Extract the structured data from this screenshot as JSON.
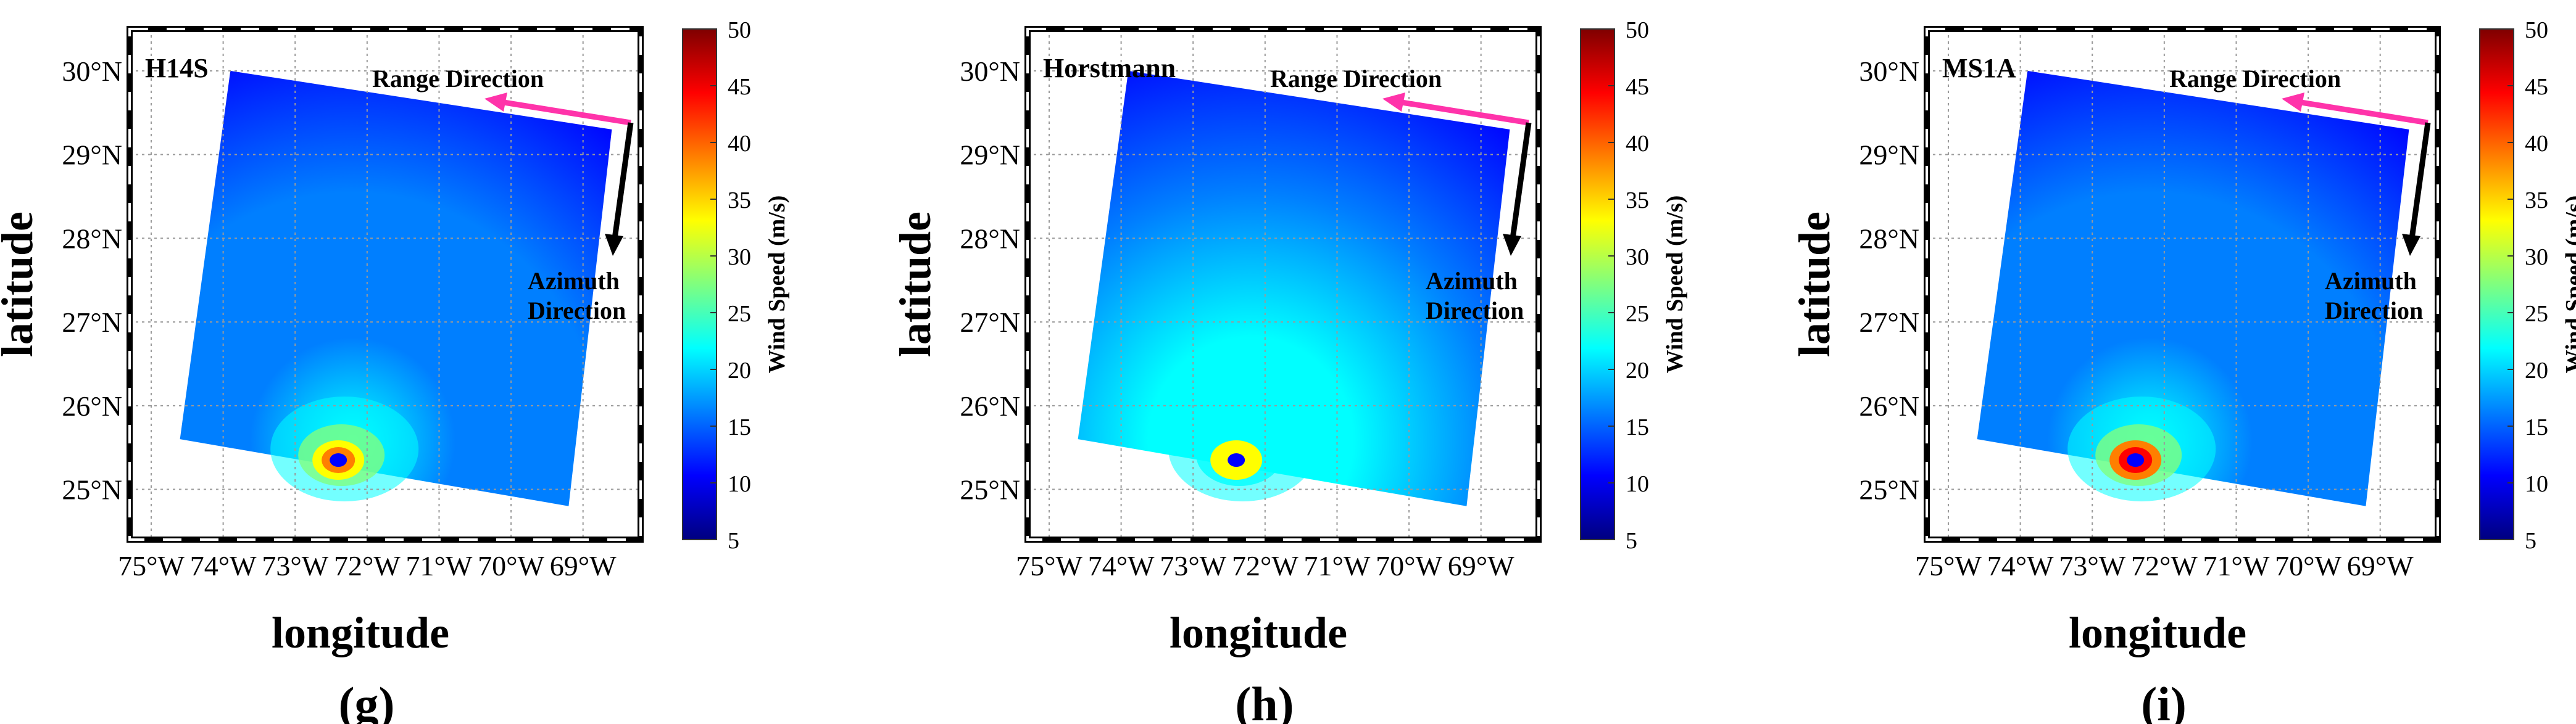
{
  "panels": [
    {
      "id": "g",
      "title": "H14S",
      "label": "(g)",
      "range_label": "Range Direction",
      "azimuth_label_line1": "Azimuth",
      "azimuth_label_line2": "Direction"
    },
    {
      "id": "h",
      "title": "Horstmann",
      "label": "(h)",
      "range_label": "Range Direction",
      "azimuth_label_line1": "Azimuth",
      "azimuth_label_line2": "Direction"
    },
    {
      "id": "i",
      "title": "MS1A",
      "label": "(i)",
      "range_label": "Range Direction",
      "azimuth_label_line1": "Azimuth",
      "azimuth_label_line2": "Direction"
    }
  ],
  "colors": {
    "range_arrow": "#ff33aa",
    "azimuth_arrow": "#000000",
    "jet": [
      "#00007f",
      "#0000ff",
      "#007fff",
      "#00ffff",
      "#7fff7f",
      "#ffff00",
      "#ff7f00",
      "#ff0000",
      "#7f0000"
    ]
  },
  "chart_data": [
    {
      "type": "heatmap",
      "title": "H14S",
      "xlabel": "longitude",
      "ylabel": "latitude",
      "xlim": [
        -75.3,
        -68.2
      ],
      "ylim": [
        24.4,
        30.5
      ],
      "x_ticks": [
        -75,
        -74,
        -73,
        -72,
        -71,
        -70,
        -69
      ],
      "x_tick_labels": [
        "75°W",
        "74°W",
        "73°W",
        "72°W",
        "71°W",
        "70°W",
        "69°W"
      ],
      "y_ticks": [
        25,
        26,
        27,
        28,
        29,
        30
      ],
      "y_tick_labels": [
        "25°N",
        "26°N",
        "27°N",
        "28°N",
        "29°N",
        "30°N"
      ],
      "grid": true,
      "colorbar": {
        "label": "Wind Speed (m/s)",
        "range": [
          5,
          50
        ],
        "ticks": [
          5,
          10,
          15,
          20,
          25,
          30,
          35,
          40,
          45,
          50
        ],
        "colormap": "jet"
      },
      "swath_corners": [
        [
          -73.9,
          30.0
        ],
        [
          -68.6,
          29.3
        ],
        [
          -69.2,
          24.8
        ],
        [
          -74.6,
          25.6
        ]
      ],
      "eye": {
        "lon": -72.4,
        "lat": 25.35,
        "peak_wind_ms": 40
      }
    },
    {
      "type": "heatmap",
      "title": "Horstmann",
      "xlabel": "longitude",
      "ylabel": "latitude",
      "xlim": [
        -75.3,
        -68.2
      ],
      "ylim": [
        24.4,
        30.5
      ],
      "x_ticks": [
        -75,
        -74,
        -73,
        -72,
        -71,
        -70,
        -69
      ],
      "x_tick_labels": [
        "75°W",
        "74°W",
        "73°W",
        "72°W",
        "71°W",
        "70°W",
        "69°W"
      ],
      "y_ticks": [
        25,
        26,
        27,
        28,
        29,
        30
      ],
      "y_tick_labels": [
        "25°N",
        "26°N",
        "27°N",
        "28°N",
        "29°N",
        "30°N"
      ],
      "grid": true,
      "colorbar": {
        "label": "Wind Speed (m/s)",
        "range": [
          5,
          50
        ],
        "ticks": [
          5,
          10,
          15,
          20,
          25,
          30,
          35,
          40,
          45,
          50
        ],
        "colormap": "jet"
      },
      "swath_corners": [
        [
          -73.9,
          30.0
        ],
        [
          -68.6,
          29.3
        ],
        [
          -69.2,
          24.8
        ],
        [
          -74.6,
          25.6
        ]
      ],
      "eye": {
        "lon": -72.4,
        "lat": 25.35,
        "peak_wind_ms": 35
      }
    },
    {
      "type": "heatmap",
      "title": "MS1A",
      "xlabel": "longitude",
      "ylabel": "latitude",
      "xlim": [
        -75.3,
        -68.2
      ],
      "ylim": [
        24.4,
        30.5
      ],
      "x_ticks": [
        -75,
        -74,
        -73,
        -72,
        -71,
        -70,
        -69
      ],
      "x_tick_labels": [
        "75°W",
        "74°W",
        "73°W",
        "72°W",
        "71°W",
        "70°W",
        "69°W"
      ],
      "y_ticks": [
        25,
        26,
        27,
        28,
        29,
        30
      ],
      "y_tick_labels": [
        "25°N",
        "26°N",
        "27°N",
        "28°N",
        "29°N",
        "30°N"
      ],
      "grid": true,
      "colorbar": {
        "label": "Wind Speed (m/s)",
        "range": [
          5,
          50
        ],
        "ticks": [
          5,
          10,
          15,
          20,
          25,
          30,
          35,
          40,
          45,
          50
        ],
        "colormap": "jet"
      },
      "swath_corners": [
        [
          -73.9,
          30.0
        ],
        [
          -68.6,
          29.3
        ],
        [
          -69.2,
          24.8
        ],
        [
          -74.6,
          25.6
        ]
      ],
      "eye": {
        "lon": -72.4,
        "lat": 25.35,
        "peak_wind_ms": 42
      }
    }
  ]
}
